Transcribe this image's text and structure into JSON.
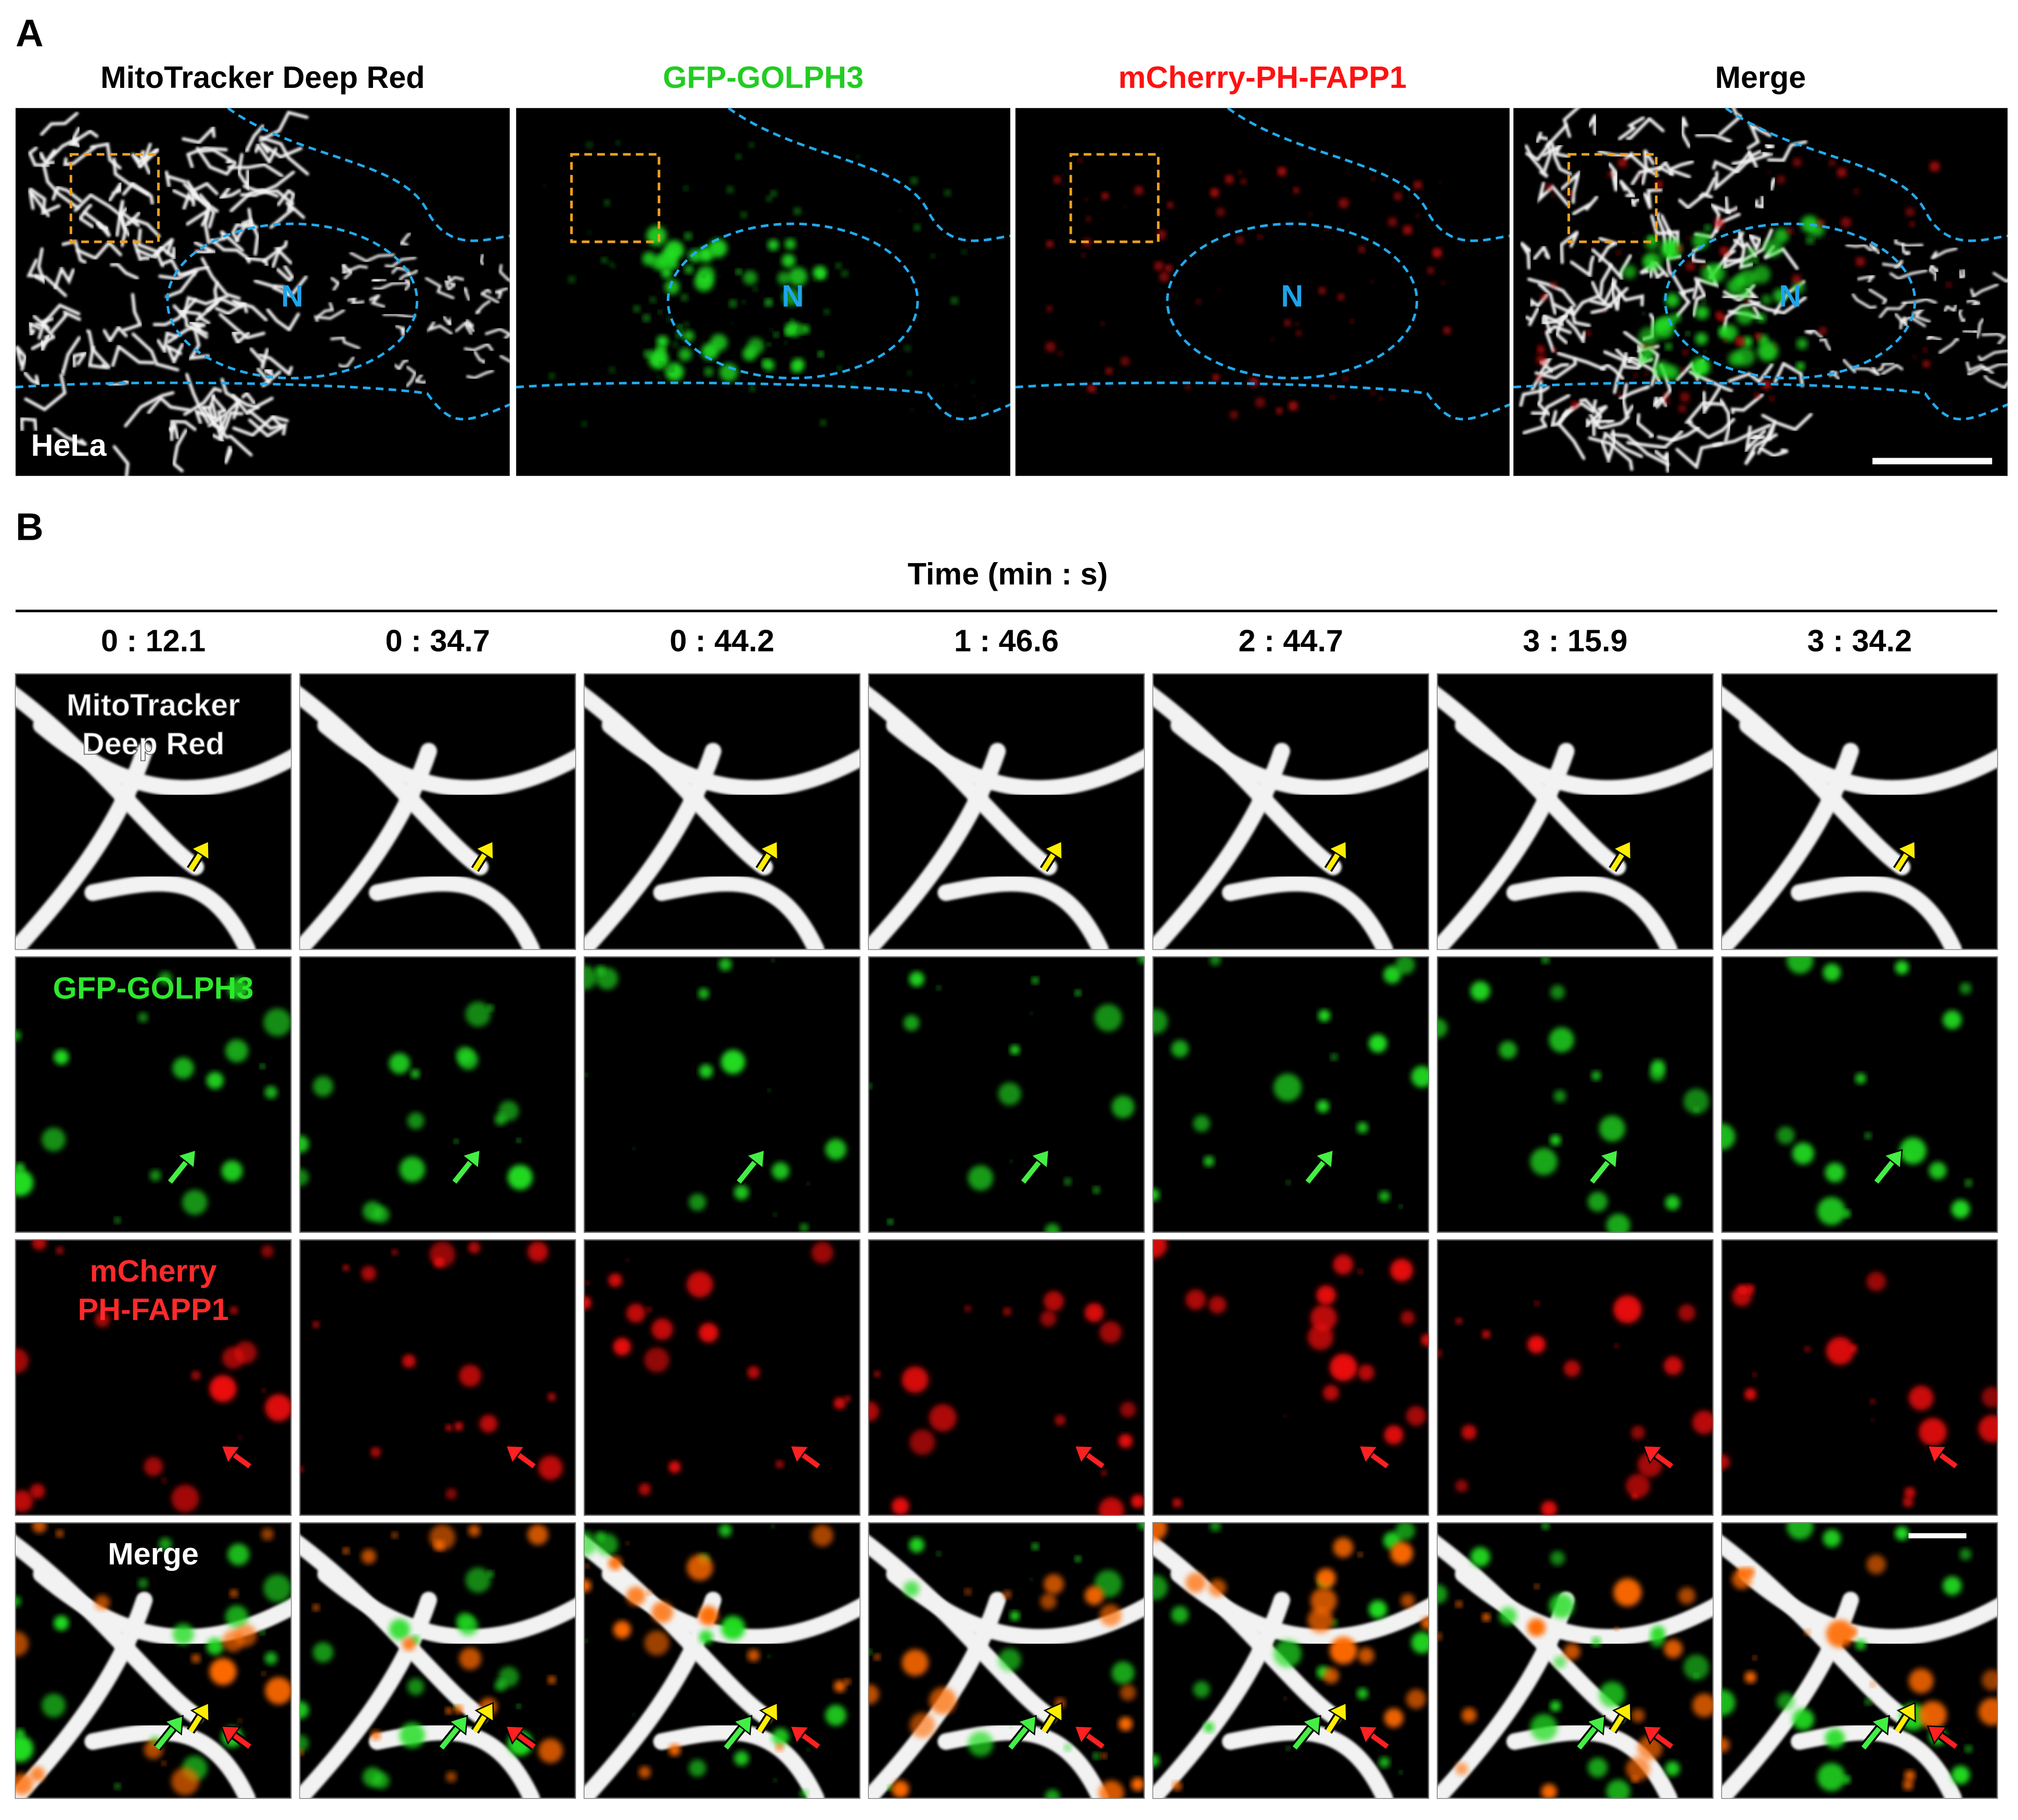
{
  "panel_a": {
    "label": "A",
    "columns": [
      "MitoTracker Deep Red",
      "GFP-GOLPH3",
      "mCherry-PH-FAPP1",
      "Merge"
    ],
    "nucleus_label": "N",
    "cell_line": "HeLa"
  },
  "panel_b": {
    "label": "B",
    "axis_title": "Time (min : s)",
    "timepoints": [
      "0 : 12.1",
      "0 : 34.7",
      "0 : 44.2",
      "1 : 46.6",
      "2 : 44.7",
      "3 : 15.9",
      "3 : 34.2"
    ],
    "rows": [
      [
        "MitoTracker",
        "Deep Red"
      ],
      [
        "GFP-GOLPH3"
      ],
      [
        "mCherry",
        "PH-FAPP1"
      ],
      [
        "Merge"
      ]
    ]
  }
}
